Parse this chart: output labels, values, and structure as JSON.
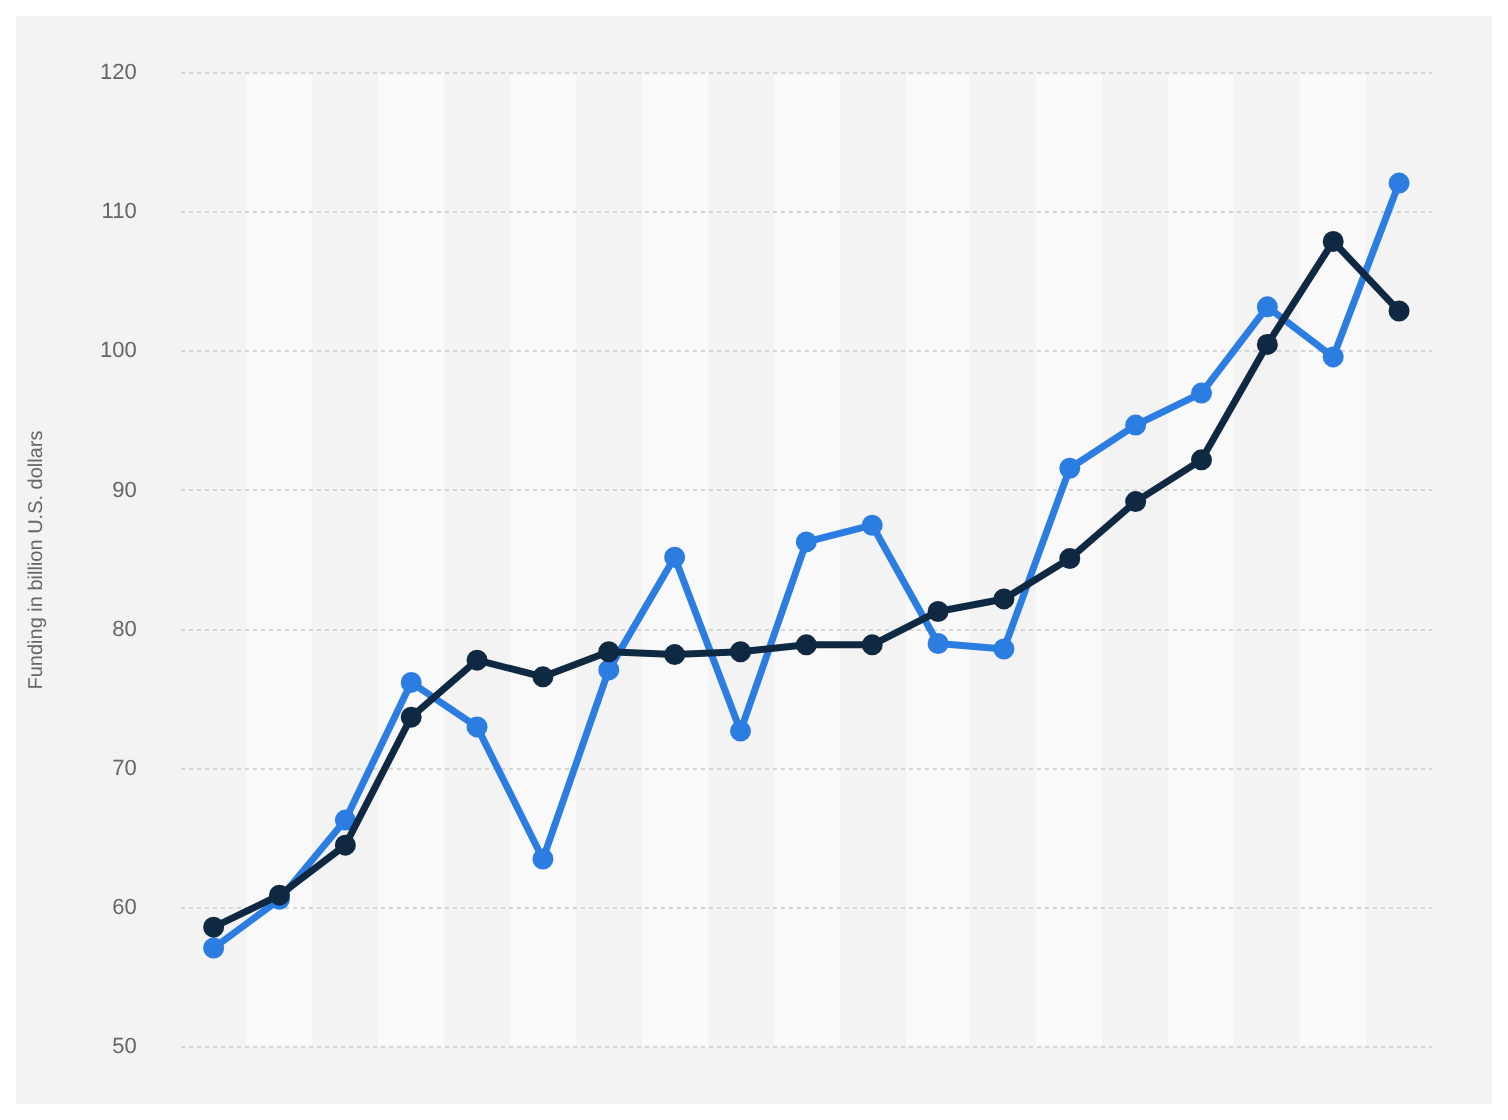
{
  "chart_data": {
    "type": "line",
    "ylabel": "Funding in billion U.S. dollars",
    "categories": [
      null,
      null,
      null,
      null,
      null,
      null,
      null,
      null,
      null,
      null,
      null,
      null,
      null,
      null,
      null,
      null,
      null,
      null,
      null
    ],
    "series": [
      {
        "color": "#2b7de1",
        "values": [
          57.1,
          60.6,
          66.3,
          76.2,
          73.0,
          63.5,
          77.1,
          85.2,
          72.7,
          86.3,
          87.5,
          79.0,
          78.6,
          91.6,
          94.7,
          97.0,
          103.2,
          99.6,
          112.1
        ]
      },
      {
        "color": "#0f2942",
        "values": [
          58.6,
          60.9,
          64.5,
          73.7,
          77.8,
          76.6,
          78.4,
          78.2,
          78.4,
          78.9,
          78.9,
          81.3,
          82.2,
          85.1,
          89.2,
          92.2,
          100.5,
          107.9,
          102.9
        ]
      }
    ],
    "ylim": [
      50,
      120
    ],
    "yticks": [
      50,
      60,
      70,
      80,
      90,
      100,
      110,
      120
    ],
    "grid": "y",
    "tick_labels": "y",
    "marker": "circle",
    "line_style": "solid",
    "legend": false
  }
}
